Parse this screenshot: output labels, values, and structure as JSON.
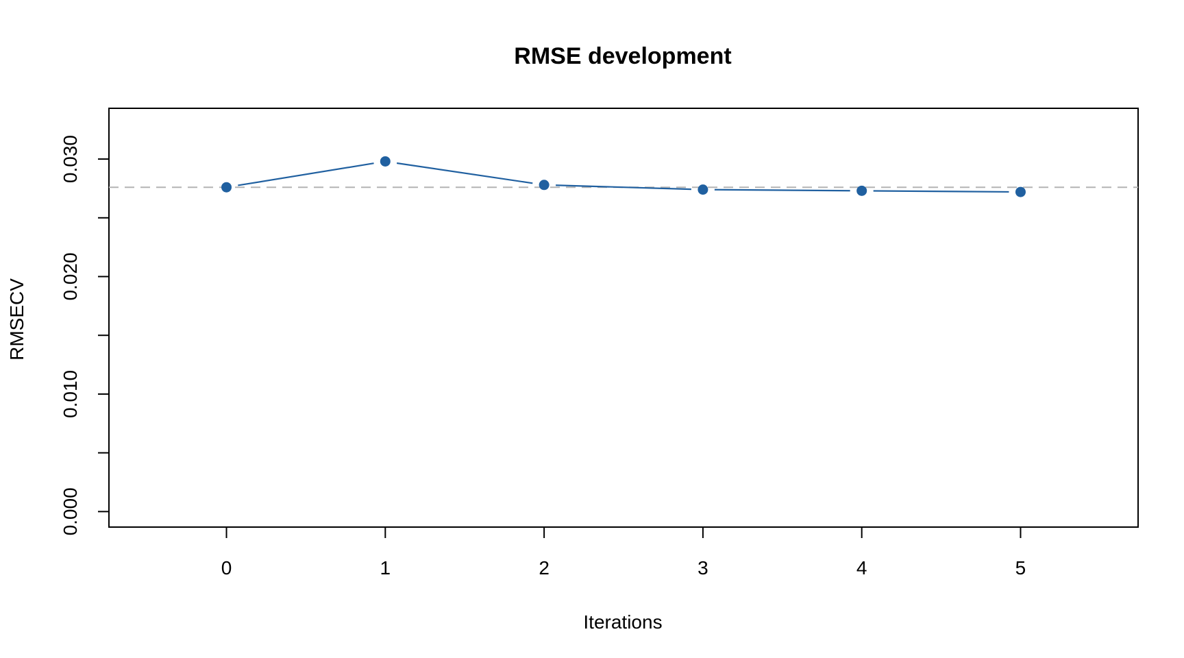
{
  "chart_data": {
    "type": "line",
    "title": "RMSE development",
    "xlabel": "Iterations",
    "ylabel": "RMSECV",
    "x": [
      0,
      1,
      2,
      3,
      4,
      5
    ],
    "xlim": [
      -0.74,
      5.74
    ],
    "ylim": [
      -0.00132,
      0.03432
    ],
    "x_ticks": [
      0,
      1,
      2,
      3,
      4,
      5
    ],
    "x_tick_labels": [
      "0",
      "1",
      "2",
      "3",
      "4",
      "5"
    ],
    "y_ticks": [
      0.0,
      0.005,
      0.01,
      0.015,
      0.02,
      0.025,
      0.03
    ],
    "y_tick_labels": [
      "0.000",
      "",
      "0.010",
      "",
      "0.020",
      "",
      "0.030"
    ],
    "series": [
      {
        "values": [
          0.0276,
          0.0298,
          0.0278,
          0.0274,
          0.0273,
          0.0272
        ],
        "color": "#2060a0",
        "marker": "filled-circle"
      }
    ],
    "reference_line": {
      "y": 0.0276,
      "style": "dashed",
      "color": "#b4b4b4"
    },
    "grid": false,
    "legend": "none"
  }
}
